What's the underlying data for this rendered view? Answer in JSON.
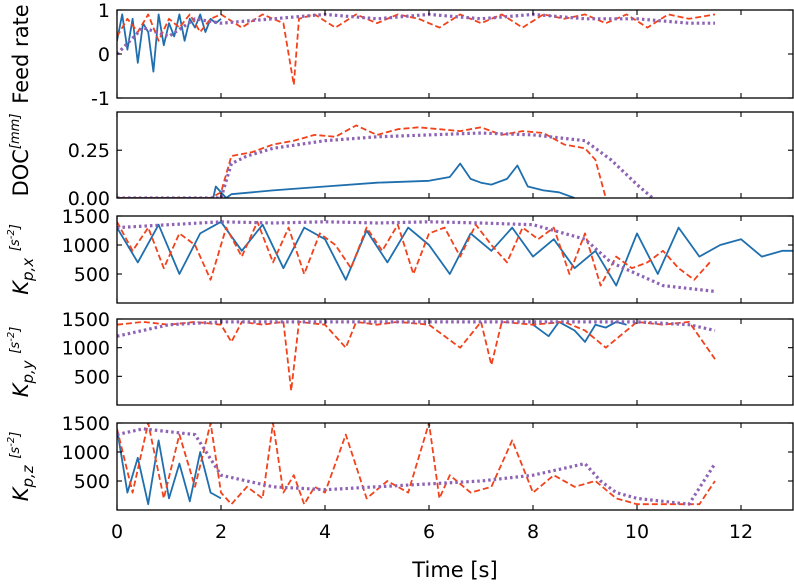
{
  "chart_data": {
    "type": "line",
    "xlabel": "Time [s]",
    "xlim": [
      0,
      13
    ],
    "xticks": [
      0,
      2,
      4,
      6,
      8,
      10,
      12
    ],
    "colors": {
      "solid": "#1f6fae",
      "dashed": "#f2421b",
      "dotted": "#8e63b5"
    },
    "panels": [
      {
        "id": "feed",
        "ylabel": "Feed rate",
        "yunit": "",
        "ylim": [
          -1,
          1
        ],
        "yticks": [
          -1,
          0,
          1
        ],
        "series": [
          {
            "style": "solid",
            "x": [
              0.0,
              0.1,
              0.2,
              0.3,
              0.4,
              0.5,
              0.6,
              0.7,
              0.8,
              0.9,
              1.0,
              1.1,
              1.2,
              1.3,
              1.4,
              1.5,
              1.6,
              1.7,
              1.8,
              1.9,
              2.0
            ],
            "y": [
              0.3,
              0.9,
              0.1,
              0.8,
              -0.2,
              0.7,
              0.5,
              -0.4,
              0.9,
              0.2,
              0.7,
              0.4,
              0.9,
              0.3,
              0.8,
              0.6,
              0.9,
              0.5,
              0.8,
              0.7,
              0.8
            ]
          },
          {
            "style": "dashed",
            "x": [
              0.0,
              0.2,
              0.4,
              0.6,
              0.8,
              1.0,
              1.2,
              1.4,
              1.6,
              1.8,
              2.0,
              2.4,
              2.8,
              3.2,
              3.4,
              3.5,
              3.8,
              4.2,
              4.6,
              5.0,
              5.4,
              5.8,
              6.2,
              6.6,
              7.0,
              7.4,
              7.8,
              8.2,
              8.6,
              9.0,
              9.4,
              9.8,
              10.2,
              10.6,
              11.0,
              11.5
            ],
            "y": [
              0.4,
              0.8,
              0.5,
              0.9,
              0.3,
              0.8,
              0.6,
              0.9,
              0.5,
              0.8,
              0.9,
              0.6,
              0.9,
              0.7,
              -0.7,
              0.8,
              0.9,
              0.6,
              0.9,
              0.7,
              0.9,
              0.8,
              0.6,
              0.9,
              0.7,
              0.9,
              0.6,
              0.9,
              0.8,
              0.9,
              0.7,
              0.9,
              0.6,
              0.9,
              0.8,
              0.9
            ]
          },
          {
            "style": "dotted",
            "x": [
              0.0,
              0.5,
              1.0,
              1.5,
              2.0,
              3.0,
              4.0,
              5.0,
              6.0,
              7.0,
              8.0,
              9.0,
              10.0,
              11.0,
              11.5
            ],
            "y": [
              0.0,
              0.6,
              0.4,
              0.8,
              0.7,
              0.8,
              0.9,
              0.8,
              0.9,
              0.8,
              0.9,
              0.8,
              0.8,
              0.7,
              0.7
            ]
          }
        ]
      },
      {
        "id": "doc",
        "ylabel": "DOC",
        "yunit": "[mm]",
        "ylim": [
          0,
          0.45
        ],
        "yticks": [
          0,
          0.25
        ],
        "ytick_labels": [
          "0.00",
          "0.25"
        ],
        "series": [
          {
            "style": "solid",
            "x": [
              0,
              1.5,
              1.85,
              1.9,
              2.1,
              2.2,
              3.0,
              4.0,
              5.0,
              6.0,
              6.4,
              6.6,
              6.8,
              7.0,
              7.2,
              7.5,
              7.7,
              7.9,
              8.2,
              8.5,
              8.8
            ],
            "y": [
              0,
              0,
              0,
              0.06,
              0.0,
              0.02,
              0.04,
              0.06,
              0.08,
              0.09,
              0.11,
              0.18,
              0.1,
              0.08,
              0.07,
              0.1,
              0.17,
              0.06,
              0.04,
              0.03,
              0.0
            ]
          },
          {
            "style": "dashed",
            "x": [
              0,
              1.8,
              2.0,
              2.2,
              2.6,
              3.0,
              3.4,
              3.8,
              4.2,
              4.6,
              5.0,
              5.4,
              5.8,
              6.2,
              6.6,
              7.0,
              7.4,
              7.8,
              8.2,
              8.6,
              9.0,
              9.2,
              9.4
            ],
            "y": [
              0,
              0,
              0.03,
              0.22,
              0.24,
              0.28,
              0.3,
              0.33,
              0.32,
              0.38,
              0.33,
              0.36,
              0.37,
              0.36,
              0.35,
              0.37,
              0.33,
              0.35,
              0.34,
              0.28,
              0.26,
              0.2,
              0.0
            ]
          },
          {
            "style": "dotted",
            "x": [
              0,
              2.0,
              2.2,
              2.5,
              3.0,
              4.0,
              5.0,
              6.0,
              7.0,
              8.0,
              9.0,
              9.5,
              10.0,
              10.3
            ],
            "y": [
              0,
              0,
              0.18,
              0.22,
              0.26,
              0.3,
              0.32,
              0.33,
              0.34,
              0.33,
              0.3,
              0.2,
              0.07,
              0.0
            ]
          }
        ]
      },
      {
        "id": "kpx",
        "ylabel": "K_{p,x}",
        "yunit": "[s^{-2}]",
        "ylim": [
          0,
          1500
        ],
        "yticks": [
          500,
          1000,
          1500
        ],
        "series": [
          {
            "style": "solid",
            "x": [
              0,
              0.4,
              0.8,
              1.2,
              1.6,
              2.0,
              2.4,
              2.8,
              3.2,
              3.6,
              4.0,
              4.4,
              4.8,
              5.2,
              5.6,
              6.0,
              6.4,
              6.8,
              7.2,
              7.6,
              8.0,
              8.4,
              8.8,
              9.2,
              9.6,
              10.0,
              10.4,
              10.8,
              11.2,
              11.6,
              12.0,
              12.4,
              12.8,
              13.0
            ],
            "y": [
              1300,
              700,
              1350,
              500,
              1200,
              1400,
              900,
              1350,
              600,
              1300,
              1100,
              400,
              1250,
              700,
              1300,
              1000,
              500,
              1200,
              900,
              1300,
              800,
              1100,
              600,
              900,
              300,
              1200,
              500,
              1300,
              800,
              1000,
              1100,
              800,
              900,
              900
            ]
          },
          {
            "style": "dashed",
            "x": [
              0,
              0.3,
              0.6,
              0.9,
              1.2,
              1.5,
              1.8,
              2.1,
              2.4,
              2.7,
              3.0,
              3.3,
              3.6,
              3.9,
              4.2,
              4.5,
              4.8,
              5.1,
              5.4,
              5.7,
              6.0,
              6.3,
              6.6,
              6.9,
              7.2,
              7.5,
              7.8,
              8.1,
              8.4,
              8.7,
              9.0,
              9.3,
              9.6,
              9.9,
              10.2,
              10.5,
              10.8,
              11.1,
              11.4
            ],
            "y": [
              1400,
              900,
              1300,
              600,
              1200,
              1000,
              400,
              1300,
              800,
              1400,
              700,
              1300,
              500,
              1200,
              1000,
              600,
              1300,
              900,
              1350,
              500,
              1200,
              1300,
              800,
              1350,
              1000,
              700,
              1300,
              1100,
              1300,
              500,
              1200,
              300,
              800,
              600,
              700,
              900,
              600,
              400,
              700
            ]
          },
          {
            "style": "dotted",
            "x": [
              0,
              1,
              2,
              3,
              4,
              5,
              6,
              7,
              8,
              9,
              9.5,
              10,
              10.5,
              11,
              11.5
            ],
            "y": [
              1300,
              1350,
              1400,
              1380,
              1400,
              1380,
              1400,
              1380,
              1350,
              1100,
              700,
              500,
              300,
              250,
              200
            ]
          }
        ]
      },
      {
        "id": "kpy",
        "ylabel": "K_{p,y}",
        "yunit": "[s^{-2}]",
        "ylim": [
          0,
          1500
        ],
        "yticks": [
          500,
          1000,
          1500
        ],
        "series": [
          {
            "style": "solid",
            "x": [
              8.0,
              8.3,
              8.5,
              8.8,
              9.0,
              9.2,
              9.4,
              9.6,
              9.8
            ],
            "y": [
              1400,
              1200,
              1450,
              1300,
              1100,
              1400,
              1350,
              1450,
              1400
            ]
          },
          {
            "style": "dashed",
            "x": [
              0,
              0.5,
              1.0,
              1.5,
              2.0,
              2.2,
              2.4,
              2.8,
              3.2,
              3.35,
              3.5,
              4.0,
              4.4,
              4.6,
              5.0,
              5.4,
              6.0,
              6.6,
              7.0,
              7.2,
              7.4,
              8.0,
              8.6,
              9.0,
              9.4,
              10.0,
              10.5,
              11.0,
              11.5
            ],
            "y": [
              1400,
              1450,
              1400,
              1450,
              1400,
              1100,
              1450,
              1400,
              1450,
              250,
              1450,
              1400,
              1000,
              1450,
              1400,
              1450,
              1400,
              1000,
              1450,
              700,
              1450,
              1400,
              1450,
              1300,
              1000,
              1450,
              1400,
              1450,
              800
            ]
          },
          {
            "style": "dotted",
            "x": [
              0,
              1,
              2,
              3,
              4,
              5,
              6,
              7,
              8,
              9,
              10,
              11,
              11.5
            ],
            "y": [
              1200,
              1400,
              1450,
              1450,
              1450,
              1450,
              1450,
              1450,
              1450,
              1450,
              1450,
              1400,
              1300
            ]
          }
        ]
      },
      {
        "id": "kpz",
        "ylabel": "K_{p,z}",
        "yunit": "[s^{-2}]",
        "ylim": [
          0,
          1500
        ],
        "yticks": [
          500,
          1000,
          1500
        ],
        "series": [
          {
            "style": "solid",
            "x": [
              0,
              0.2,
              0.4,
              0.6,
              0.8,
              1.0,
              1.2,
              1.4,
              1.6,
              1.8,
              2.0
            ],
            "y": [
              1400,
              300,
              900,
              100,
              1200,
              200,
              800,
              150,
              1000,
              300,
              200
            ]
          },
          {
            "style": "dashed",
            "x": [
              0,
              0.3,
              0.6,
              0.9,
              1.2,
              1.5,
              1.8,
              2.0,
              2.2,
              2.5,
              2.8,
              3.0,
              3.2,
              3.4,
              3.6,
              3.8,
              4.0,
              4.4,
              4.8,
              5.2,
              5.6,
              6.0,
              6.2,
              6.4,
              6.8,
              7.2,
              7.6,
              8.0,
              8.4,
              8.8,
              9.2,
              9.6,
              10.0,
              10.4,
              10.8,
              11.2,
              11.5
            ],
            "y": [
              1400,
              300,
              1500,
              200,
              1300,
              400,
              1500,
              300,
              100,
              400,
              200,
              1500,
              300,
              600,
              100,
              400,
              300,
              1300,
              200,
              500,
              300,
              1500,
              200,
              600,
              300,
              400,
              1200,
              300,
              600,
              400,
              500,
              200,
              100,
              100,
              100,
              100,
              500
            ]
          },
          {
            "style": "dotted",
            "x": [
              0,
              0.5,
              1.0,
              1.5,
              2.0,
              3.0,
              4.0,
              5.0,
              6.0,
              7.0,
              8.0,
              8.5,
              9.0,
              9.3,
              9.6,
              10.0,
              10.5,
              11.0,
              11.5
            ],
            "y": [
              1300,
              1400,
              1350,
              1300,
              600,
              400,
              350,
              400,
              450,
              500,
              600,
              700,
              800,
              500,
              300,
              200,
              150,
              100,
              800
            ]
          }
        ]
      }
    ]
  }
}
